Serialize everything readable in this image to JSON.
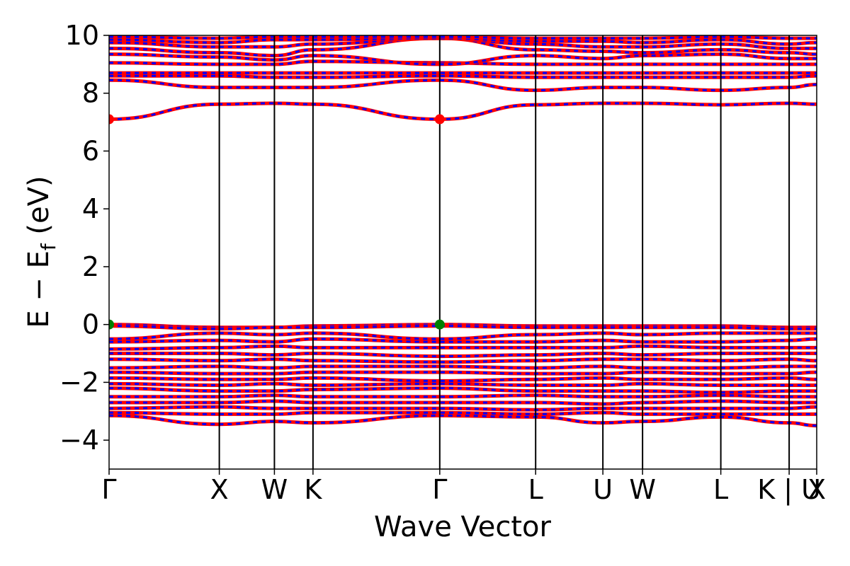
{
  "chart_data": {
    "type": "line",
    "xlabel": "Wave Vector",
    "ylabel": "E − E",
    "ylabel_sub": "f",
    "ylabel_suffix": " (eV)",
    "ylim": [
      -5,
      10
    ],
    "yticks": [
      -4,
      -2,
      0,
      2,
      4,
      6,
      8,
      10
    ],
    "ytick_labels": [
      "−4",
      "−2",
      "0",
      "2",
      "4",
      "6",
      "8",
      "10"
    ],
    "grid": false,
    "kpath": {
      "positions": [
        0,
        1.0,
        1.5,
        1.85,
        3.0,
        3.87,
        4.48,
        4.84,
        5.55,
        6.17,
        6.42
      ],
      "labels": [
        "Γ",
        "X",
        "W",
        "K",
        "Γ",
        "L",
        "U",
        "W",
        "L",
        "K | U",
        "X"
      ],
      "divider_positions": [
        1.0,
        1.5,
        1.85,
        3.0,
        3.87,
        4.48,
        4.84,
        5.55,
        6.17
      ],
      "xlim": [
        0,
        6.42
      ]
    },
    "series": [
      {
        "values": [
          7.1,
          7.62,
          7.65,
          7.62,
          7.1,
          7.6,
          7.65,
          7.65,
          7.6,
          7.65,
          7.62
        ]
      },
      {
        "values": [
          8.45,
          8.2,
          8.2,
          8.2,
          8.45,
          8.1,
          8.2,
          8.2,
          8.1,
          8.2,
          8.3
        ]
      },
      {
        "values": [
          8.6,
          8.6,
          8.55,
          8.55,
          8.6,
          8.55,
          8.55,
          8.55,
          8.55,
          8.55,
          8.6
        ]
      },
      {
        "values": [
          8.7,
          8.7,
          8.7,
          8.7,
          8.7,
          8.7,
          8.7,
          8.7,
          8.7,
          8.7,
          8.7
        ]
      },
      {
        "values": [
          9.05,
          9.0,
          9.0,
          9.1,
          9.05,
          9.0,
          9.0,
          9.0,
          9.0,
          9.0,
          9.0
        ]
      },
      {
        "values": [
          9.35,
          9.25,
          9.15,
          9.3,
          9.0,
          9.3,
          9.2,
          9.3,
          9.35,
          9.2,
          9.2
        ]
      },
      {
        "values": [
          9.55,
          9.4,
          9.3,
          9.5,
          9.9,
          9.5,
          9.45,
          9.4,
          9.5,
          9.4,
          9.35
        ]
      },
      {
        "values": [
          9.75,
          9.6,
          9.6,
          9.7,
          9.9,
          9.7,
          9.6,
          9.6,
          9.7,
          9.55,
          9.55
        ]
      },
      {
        "values": [
          9.85,
          9.75,
          9.85,
          9.85,
          9.9,
          9.8,
          9.8,
          9.75,
          9.85,
          9.7,
          9.75
        ]
      },
      {
        "values": [
          9.95,
          9.9,
          9.95,
          9.95,
          9.95,
          9.9,
          9.9,
          9.9,
          9.95,
          9.9,
          9.9
        ]
      },
      {
        "values": [
          0.0,
          -0.1,
          -0.1,
          -0.05,
          0.0,
          -0.05,
          -0.05,
          -0.05,
          -0.05,
          -0.1,
          -0.1
        ]
      },
      {
        "values": [
          -0.05,
          -0.15,
          -0.1,
          -0.1,
          -0.05,
          -0.1,
          -0.1,
          -0.1,
          -0.1,
          -0.15,
          -0.15
        ]
      },
      {
        "values": [
          -0.5,
          -0.3,
          -0.35,
          -0.3,
          -0.5,
          -0.35,
          -0.3,
          -0.35,
          -0.3,
          -0.3,
          -0.3
        ]
      },
      {
        "values": [
          -0.6,
          -0.55,
          -0.6,
          -0.5,
          -0.6,
          -0.6,
          -0.55,
          -0.6,
          -0.6,
          -0.55,
          -0.5
        ]
      },
      {
        "values": [
          -0.85,
          -0.8,
          -0.75,
          -0.8,
          -0.8,
          -0.8,
          -0.8,
          -0.75,
          -0.8,
          -0.8,
          -0.8
        ]
      },
      {
        "values": [
          -1.0,
          -1.0,
          -1.05,
          -1.0,
          -1.1,
          -1.05,
          -1.0,
          -1.05,
          -1.0,
          -1.0,
          -1.0
        ]
      },
      {
        "values": [
          -1.2,
          -1.25,
          -1.2,
          -1.25,
          -1.3,
          -1.25,
          -1.2,
          -1.2,
          -1.25,
          -1.2,
          -1.25
        ]
      },
      {
        "values": [
          -1.5,
          -1.45,
          -1.5,
          -1.45,
          -1.45,
          -1.5,
          -1.45,
          -1.5,
          -1.5,
          -1.45,
          -1.45
        ]
      },
      {
        "values": [
          -1.65,
          -1.7,
          -1.7,
          -1.65,
          -1.65,
          -1.7,
          -1.7,
          -1.65,
          -1.7,
          -1.7,
          -1.65
        ]
      },
      {
        "values": [
          -1.85,
          -1.9,
          -1.9,
          -1.85,
          -1.95,
          -1.9,
          -1.85,
          -1.9,
          -1.9,
          -1.85,
          -1.9
        ]
      },
      {
        "values": [
          -2.05,
          -2.1,
          -2.05,
          -2.1,
          -2.05,
          -2.1,
          -2.1,
          -2.05,
          -2.1,
          -2.1,
          -2.1
        ]
      },
      {
        "values": [
          -2.2,
          -2.3,
          -2.3,
          -2.25,
          -2.2,
          -2.3,
          -2.3,
          -2.3,
          -2.35,
          -2.3,
          -2.3
        ]
      },
      {
        "values": [
          -2.5,
          -2.5,
          -2.45,
          -2.5,
          -2.5,
          -2.45,
          -2.5,
          -2.5,
          -2.45,
          -2.5,
          -2.5
        ]
      },
      {
        "values": [
          -2.7,
          -2.7,
          -2.65,
          -2.7,
          -2.7,
          -2.7,
          -2.75,
          -2.7,
          -2.65,
          -2.7,
          -2.7
        ]
      },
      {
        "values": [
          -2.9,
          -2.85,
          -2.9,
          -2.9,
          -2.9,
          -2.95,
          -2.9,
          -2.9,
          -2.9,
          -2.9,
          -2.85
        ]
      },
      {
        "values": [
          -3.05,
          -3.1,
          -3.1,
          -3.05,
          -3.05,
          -3.1,
          -3.05,
          -3.1,
          -3.1,
          -3.1,
          -3.1
        ]
      },
      {
        "values": [
          -3.15,
          -3.45,
          -3.35,
          -3.4,
          -3.15,
          -3.2,
          -3.4,
          -3.35,
          -3.2,
          -3.4,
          -3.5
        ]
      }
    ],
    "series_colors": [
      "#ff0000",
      "#0000ff"
    ],
    "markers": [
      {
        "x": 0,
        "y": 7.1,
        "color": "#ff0000"
      },
      {
        "x": 3.0,
        "y": 7.1,
        "color": "#ff0000"
      },
      {
        "x": 0,
        "y": 0.0,
        "color": "#008000"
      },
      {
        "x": 3.0,
        "y": 0.0,
        "color": "#008000"
      }
    ]
  }
}
